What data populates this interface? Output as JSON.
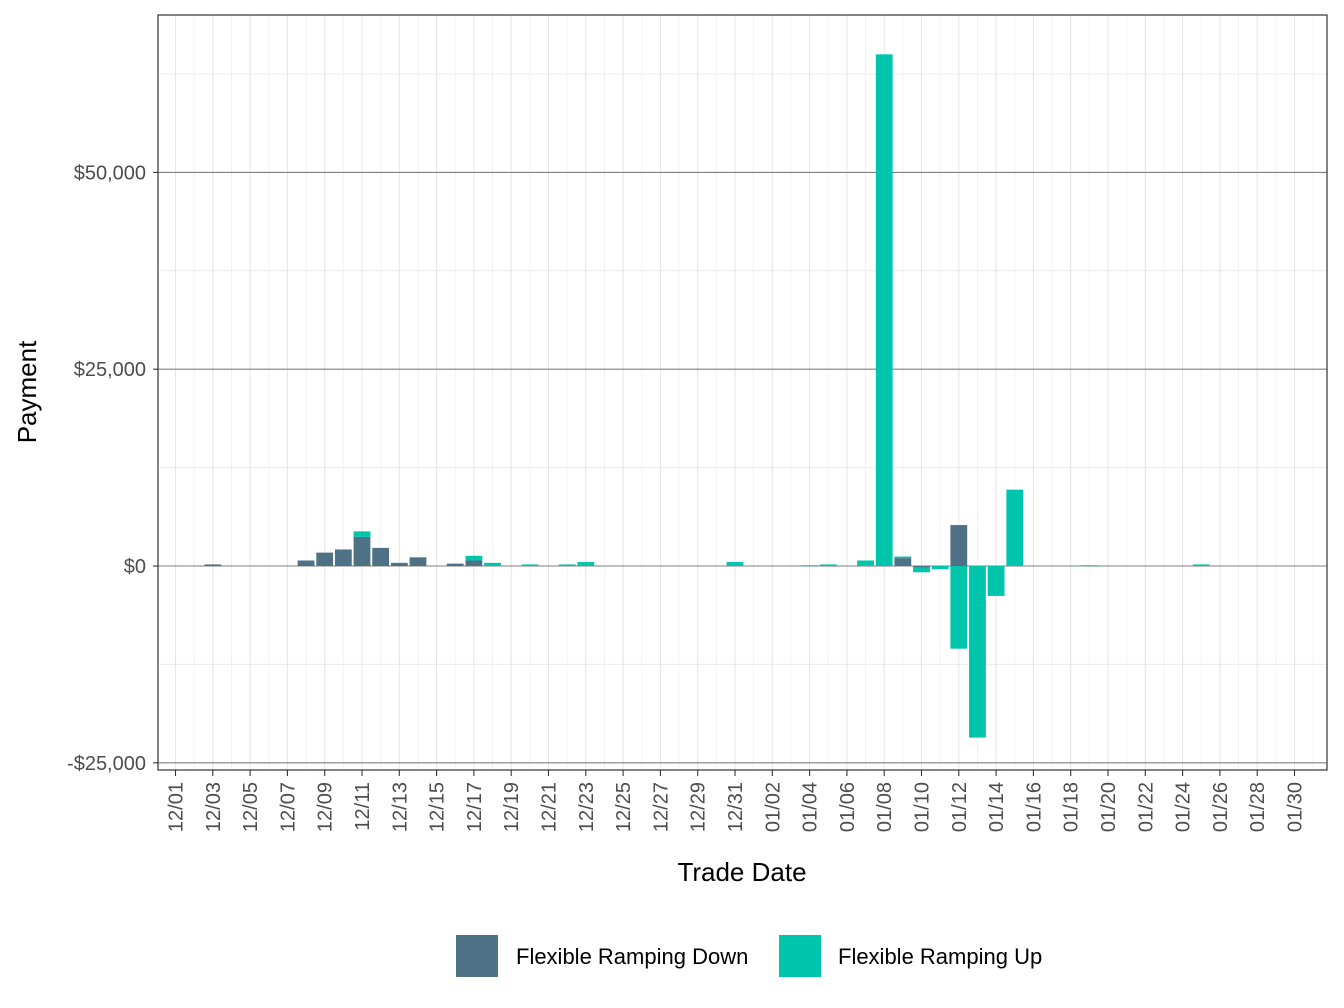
{
  "chart_data": {
    "type": "bar",
    "stacked": true,
    "title": "",
    "xlabel": "Trade Date",
    "ylabel": "Payment",
    "ylim": [
      -26000,
      70000
    ],
    "yticks": [
      -25000,
      0,
      25000,
      50000
    ],
    "ytick_labels": [
      "-$25,000",
      "$0",
      "$25,000",
      "$50,000"
    ],
    "xtick_labels": [
      "12/01",
      "12/03",
      "12/05",
      "12/07",
      "12/09",
      "12/11",
      "12/13",
      "12/15",
      "12/17",
      "12/19",
      "12/21",
      "12/23",
      "12/25",
      "12/27",
      "12/29",
      "12/31",
      "01/02",
      "01/04",
      "01/06",
      "01/08",
      "01/10",
      "01/12",
      "01/14",
      "01/16",
      "01/18",
      "01/20",
      "01/22",
      "01/24",
      "01/26",
      "01/28",
      "01/30"
    ],
    "categories": [
      "12/01",
      "12/02",
      "12/03",
      "12/04",
      "12/05",
      "12/06",
      "12/07",
      "12/08",
      "12/09",
      "12/10",
      "12/11",
      "12/12",
      "12/13",
      "12/14",
      "12/15",
      "12/16",
      "12/17",
      "12/18",
      "12/19",
      "12/20",
      "12/21",
      "12/22",
      "12/23",
      "12/24",
      "12/25",
      "12/26",
      "12/27",
      "12/28",
      "12/29",
      "12/30",
      "12/31",
      "01/01",
      "01/02",
      "01/03",
      "01/04",
      "01/05",
      "01/06",
      "01/07",
      "01/08",
      "01/09",
      "01/10",
      "01/11",
      "01/12",
      "01/13",
      "01/14",
      "01/15",
      "01/16",
      "01/17",
      "01/18",
      "01/19",
      "01/20",
      "01/21",
      "01/22",
      "01/23",
      "01/24",
      "01/25",
      "01/26",
      "01/27",
      "01/28",
      "01/29",
      "01/30",
      "01/31"
    ],
    "series": [
      {
        "name": "Flexible Ramping Down",
        "color": "#4f7185",
        "values": [
          0,
          0,
          200,
          0,
          0,
          0,
          0,
          700,
          1700,
          2100,
          3700,
          2300,
          400,
          1100,
          0,
          300,
          700,
          0,
          0,
          0,
          0,
          0,
          0,
          0,
          0,
          0,
          0,
          0,
          0,
          0,
          0,
          0,
          0,
          0,
          0,
          0,
          0,
          0,
          0,
          1000,
          -200,
          0,
          5200,
          0,
          0,
          0,
          0,
          0,
          0,
          0,
          0,
          0,
          0,
          0,
          0,
          0,
          0,
          0,
          0,
          0,
          0,
          0
        ]
      },
      {
        "name": "Flexible Ramping Up",
        "color": "#00c5ad",
        "values": [
          0,
          0,
          0,
          0,
          0,
          0,
          0,
          0,
          0,
          0,
          700,
          0,
          0,
          0,
          0,
          0,
          600,
          400,
          0,
          200,
          0,
          200,
          500,
          0,
          0,
          0,
          0,
          0,
          0,
          0,
          500,
          0,
          0,
          0,
          100,
          200,
          0,
          700,
          65000,
          200,
          -600,
          -400,
          -10500,
          -21800,
          -3800,
          9700,
          0,
          0,
          0,
          100,
          0,
          0,
          0,
          0,
          0,
          200,
          0,
          0,
          0,
          0,
          0,
          0
        ]
      }
    ],
    "legend_position": "bottom",
    "grid": true
  }
}
